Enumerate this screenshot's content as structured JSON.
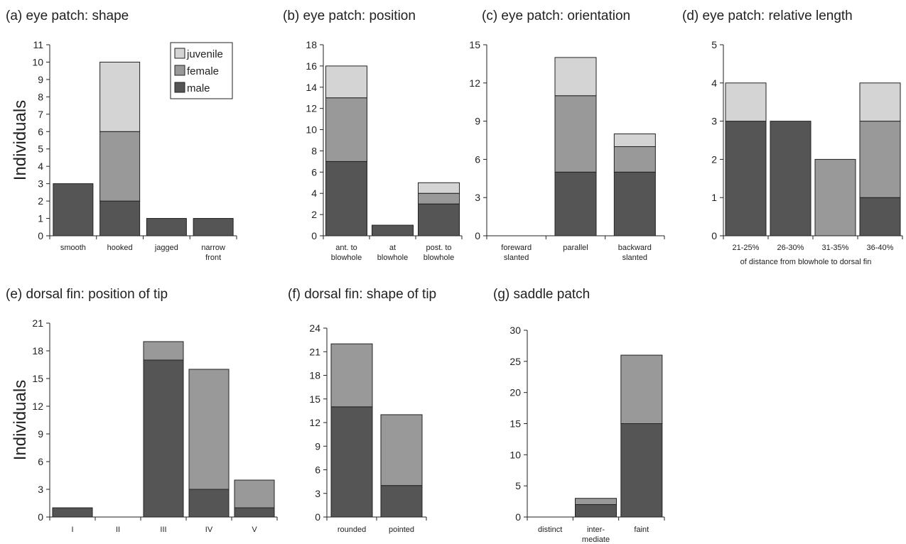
{
  "colors": {
    "male": "#555555",
    "female": "#999999",
    "juvenile": "#d4d4d4",
    "stroke": "#222222"
  },
  "legend": {
    "items": [
      {
        "key": "juvenile",
        "label": "juvenile"
      },
      {
        "key": "female",
        "label": "female"
      },
      {
        "key": "male",
        "label": "male"
      }
    ]
  },
  "chart_data": [
    {
      "id": "a",
      "type": "bar",
      "stacked": true,
      "title": "(a) eye patch: shape",
      "ylabel": "Individuals",
      "xlabel": "",
      "ylim": [
        0,
        11
      ],
      "yticks": [
        0,
        1,
        2,
        3,
        4,
        5,
        6,
        7,
        8,
        9,
        10,
        11
      ],
      "categories": [
        [
          "smooth"
        ],
        [
          "hooked"
        ],
        [
          "jagged"
        ],
        [
          "narrow",
          "front"
        ]
      ],
      "series": [
        {
          "key": "male",
          "name": "male",
          "values": [
            3,
            2,
            1,
            1
          ]
        },
        {
          "key": "female",
          "name": "female",
          "values": [
            0,
            4,
            0,
            0
          ]
        },
        {
          "key": "juvenile",
          "name": "juvenile",
          "values": [
            0,
            4,
            0,
            0
          ]
        }
      ]
    },
    {
      "id": "b",
      "type": "bar",
      "stacked": true,
      "title": "(b) eye patch: position",
      "ylabel": "",
      "xlabel": "",
      "ylim": [
        0,
        18
      ],
      "yticks": [
        0,
        2,
        4,
        6,
        8,
        10,
        12,
        14,
        16,
        18
      ],
      "categories": [
        [
          "ant. to",
          "blowhole"
        ],
        [
          "at",
          "blowhole"
        ],
        [
          "post. to",
          "blowhole"
        ]
      ],
      "series": [
        {
          "key": "male",
          "name": "male",
          "values": [
            7,
            1,
            3
          ]
        },
        {
          "key": "female",
          "name": "female",
          "values": [
            6,
            0,
            1
          ]
        },
        {
          "key": "juvenile",
          "name": "juvenile",
          "values": [
            3,
            0,
            1
          ]
        }
      ]
    },
    {
      "id": "c",
      "type": "bar",
      "stacked": true,
      "title": "(c) eye patch: orientation",
      "ylabel": "",
      "xlabel": "",
      "ylim": [
        0,
        15
      ],
      "yticks": [
        0,
        3,
        6,
        9,
        12,
        15
      ],
      "categories": [
        [
          "foreward",
          "slanted"
        ],
        [
          "parallel"
        ],
        [
          "backward",
          "slanted"
        ]
      ],
      "series": [
        {
          "key": "male",
          "name": "male",
          "values": [
            0,
            5,
            5
          ]
        },
        {
          "key": "female",
          "name": "female",
          "values": [
            0,
            6,
            2
          ]
        },
        {
          "key": "juvenile",
          "name": "juvenile",
          "values": [
            0,
            3,
            1
          ]
        }
      ]
    },
    {
      "id": "d",
      "type": "bar",
      "stacked": true,
      "title": "(d) eye patch: relative length",
      "ylabel": "",
      "xlabel": "of distance from blowhole to dorsal fin",
      "ylim": [
        0,
        5
      ],
      "yticks": [
        0,
        1,
        2,
        3,
        4,
        5
      ],
      "categories": [
        [
          "21-25%"
        ],
        [
          "26-30%"
        ],
        [
          "31-35%"
        ],
        [
          "36-40%"
        ]
      ],
      "series": [
        {
          "key": "male",
          "name": "male",
          "values": [
            3,
            3,
            0,
            1
          ]
        },
        {
          "key": "female",
          "name": "female",
          "values": [
            0,
            0,
            2,
            2
          ]
        },
        {
          "key": "juvenile",
          "name": "juvenile",
          "values": [
            1,
            0,
            0,
            1
          ]
        }
      ]
    },
    {
      "id": "e",
      "type": "bar",
      "stacked": true,
      "title": "(e) dorsal fin: position of tip",
      "ylabel": "Individuals",
      "xlabel": "",
      "ylim": [
        0,
        21
      ],
      "yticks": [
        0,
        3,
        6,
        9,
        12,
        15,
        18,
        21
      ],
      "categories": [
        [
          "I"
        ],
        [
          "II"
        ],
        [
          "III"
        ],
        [
          "IV"
        ],
        [
          "V"
        ]
      ],
      "series": [
        {
          "key": "male",
          "name": "male",
          "values": [
            1,
            0,
            17,
            3,
            1
          ]
        },
        {
          "key": "female",
          "name": "female",
          "values": [
            0,
            0,
            2,
            13,
            3
          ]
        }
      ]
    },
    {
      "id": "f",
      "type": "bar",
      "stacked": true,
      "title": "(f) dorsal fin: shape of tip",
      "ylabel": "",
      "xlabel": "",
      "ylim": [
        0,
        24
      ],
      "yticks": [
        0,
        3,
        6,
        9,
        12,
        15,
        18,
        21,
        24
      ],
      "categories": [
        [
          "rounded"
        ],
        [
          "pointed"
        ]
      ],
      "series": [
        {
          "key": "male",
          "name": "male",
          "values": [
            14,
            4
          ]
        },
        {
          "key": "female",
          "name": "female",
          "values": [
            8,
            9
          ]
        }
      ]
    },
    {
      "id": "g",
      "type": "bar",
      "stacked": true,
      "title": "(g) saddle patch",
      "ylabel": "",
      "xlabel": "",
      "ylim": [
        0,
        30
      ],
      "yticks": [
        0,
        5,
        10,
        15,
        20,
        25,
        30
      ],
      "categories": [
        [
          "distinct"
        ],
        [
          "inter-",
          "mediate"
        ],
        [
          "faint"
        ]
      ],
      "series": [
        {
          "key": "male",
          "name": "male",
          "values": [
            0,
            2,
            15
          ]
        },
        {
          "key": "female",
          "name": "female",
          "values": [
            0,
            1,
            11
          ]
        }
      ]
    }
  ]
}
